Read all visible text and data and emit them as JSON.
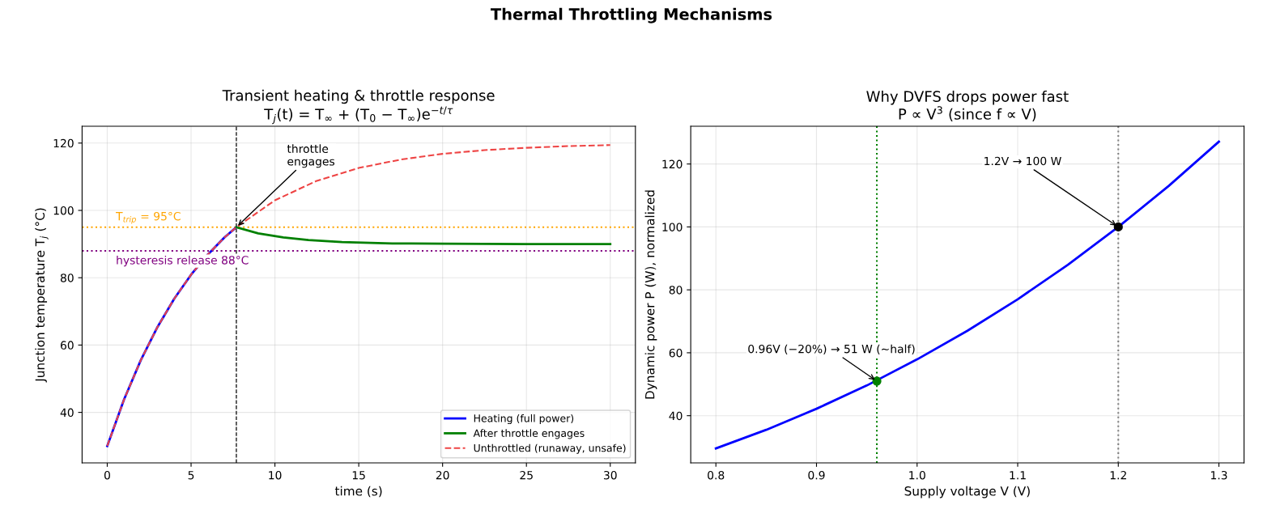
{
  "chart_data": [
    {
      "type": "line",
      "title": "Transient heating & throttle response",
      "subtitle": "T$_{j}$(t) = T$_{∞}$ + (T$_{0}$ − T$_{∞}$)e$^{−t/τ}$",
      "xlabel": "time (s)",
      "ylabel": "Junction temperature T$_{j}$ (°C)",
      "xlim": [
        -1.5,
        31.5
      ],
      "ylim": [
        25,
        125
      ],
      "xticks": [
        0,
        5,
        10,
        15,
        20,
        25,
        30
      ],
      "yticks": [
        40,
        60,
        80,
        100,
        120
      ],
      "grid": true,
      "legend": "bottom right",
      "marker": "none",
      "series": [
        {
          "name": "Heating (full power)",
          "color": "#0000ff",
          "line_style": "solid",
          "x": [
            0,
            1,
            2,
            3,
            4,
            5,
            6,
            7,
            7.7
          ],
          "values": [
            30,
            43.8,
            55.5,
            65.4,
            73.8,
            80.9,
            86.9,
            92.0,
            95
          ]
        },
        {
          "name": "After throttle engages",
          "color": "#008000",
          "line_style": "solid",
          "x": [
            7.7,
            9,
            10.5,
            12,
            14,
            17,
            20,
            25,
            30
          ],
          "values": [
            95,
            93.2,
            92.0,
            91.2,
            90.6,
            90.2,
            90.1,
            90.0,
            90.0
          ]
        },
        {
          "name": "Unthrottled (runaway, unsafe)",
          "color": "#ee4444",
          "line_style": "dashed",
          "x": [
            0,
            1,
            2,
            3,
            4,
            5,
            6,
            7,
            7.7,
            10,
            12.5,
            15,
            17.5,
            20,
            22.5,
            25,
            27.5,
            30
          ],
          "values": [
            30,
            43.8,
            55.5,
            65.4,
            73.8,
            80.9,
            86.9,
            92.0,
            95,
            103.0,
            108.8,
            112.6,
            115.1,
            116.8,
            117.9,
            118.6,
            119.1,
            119.4
          ]
        }
      ],
      "ref_lines": [
        {
          "axis": "x",
          "value": 7.7,
          "label": null,
          "color": "#000000",
          "line_style": "dashed"
        },
        {
          "axis": "y",
          "value": 95,
          "label": "T$_{trip}$ = 95°C",
          "color": "#ffa500",
          "line_style": "dotted"
        },
        {
          "axis": "y",
          "value": 88,
          "label": "hysteresis release 88°C",
          "color": "#800080",
          "line_style": "dotted"
        }
      ],
      "annotations": [
        "Thermal Throttling Mechanisms",
        {
          "text": "throttle\nengages",
          "x": 7.7,
          "y": 95
        }
      ]
    },
    {
      "type": "line",
      "title": "Why DVFS drops power fast",
      "subtitle": "P ∝ V$^{3}$ (since f ∝ V)",
      "xlabel": "Supply voltage V (V)",
      "ylabel": "Dynamic power P (W), normalized",
      "xlim": [
        0.775,
        1.325
      ],
      "ylim": [
        25,
        132
      ],
      "xticks": [
        {
          "value": 0.8,
          "label": "0.8"
        },
        {
          "value": 0.9,
          "label": "0.9"
        },
        {
          "value": 1.0,
          "label": "1.0"
        },
        {
          "value": 1.1,
          "label": "1.1"
        },
        {
          "value": 1.2,
          "label": "1.2"
        },
        {
          "value": 1.3,
          "label": "1.3"
        }
      ],
      "yticks": [
        40,
        60,
        80,
        100,
        120
      ],
      "grid": true,
      "legend": false,
      "series": [
        {
          "color": "#0000ff",
          "marker": "none",
          "x": [
            0.8,
            0.85,
            0.9,
            0.95,
            1.0,
            1.05,
            1.1,
            1.15,
            1.2,
            1.25,
            1.3
          ],
          "values": [
            29.6,
            35.5,
            42.2,
            49.6,
            57.9,
            67.0,
            77.0,
            88.0,
            100,
            113.0,
            127.1
          ]
        },
        {
          "type": "scatter",
          "color": "#008000",
          "marker": "circle",
          "x": [
            0.96
          ],
          "values": [
            51
          ]
        },
        {
          "type": "scatter",
          "color": "#000000",
          "marker": "circle",
          "x": [
            1.2
          ],
          "values": [
            100
          ]
        }
      ],
      "ref_lines": [
        {
          "axis": "x",
          "value": 0.96,
          "label": null,
          "color": "#008000",
          "line_style": "dotted"
        },
        {
          "axis": "x",
          "value": 1.2,
          "label": null,
          "color": "#808080",
          "line_style": "dotted"
        }
      ],
      "annotations": [
        {
          "text": "1.2V → 100 W",
          "x": 1.2,
          "y": 100
        },
        {
          "text": "0.96V (−20%) → 51 W (~half)",
          "x": 0.96,
          "y": 51
        }
      ]
    }
  ]
}
